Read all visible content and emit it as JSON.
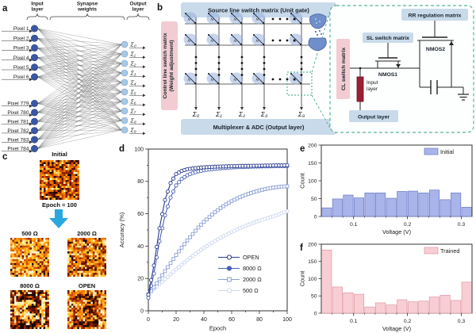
{
  "a": {
    "label": "a",
    "brace_labels": [
      "Input layer",
      "Synapse weights",
      "Output layer"
    ],
    "inputs": [
      "Pixel 1",
      "Pixel 2",
      "Pixel 3",
      "Pixel 4",
      "Pixel 5",
      "Pixel 6",
      "Pixel 779",
      "Pixel 780",
      "Pixel 781",
      "Pixel 782",
      "Pixel 783",
      "Pixel 784"
    ],
    "outputs": [
      "Σ₀",
      "Σ₁",
      "Σ₂",
      "Σ₃",
      "Σ₄",
      "Σ₅",
      "Σ₆",
      "Σ₇",
      "Σ₈",
      "Σ₉"
    ],
    "input_node_color": "#3a57a7",
    "output_node_color": "#a8c8e8"
  },
  "b": {
    "label": "b",
    "source_box": "Source line switch matrix (Unit gate)",
    "control_line1": "Control line switch matrix",
    "control_line2": "(Weight adjustment)",
    "mux_box": "Multiplexer & ADC (Output layer)",
    "sums": [
      "Σ₀",
      "Σ₁",
      "Σ₂",
      "Σ₃",
      "Σ₉"
    ],
    "detail": {
      "rr": "RR regulation matrix",
      "sl": "SL switch matrix",
      "cl": "CL switch matrix",
      "nmos1": "NMOS1",
      "nmos2": "NMOS2",
      "input_line1": "Input",
      "input_line2": "layer",
      "output_layer": "Output layer"
    },
    "box_blue": "#c9daea",
    "box_pink": "#f2ccd2",
    "resistor_color": "#9b1f35",
    "callout_color": "#57b39e"
  },
  "c": {
    "label": "c",
    "maps": [
      {
        "id": "initial",
        "title": "Initial",
        "subtitle": "Epoch = 100",
        "seed": 101,
        "style": "initial"
      },
      {
        "id": "m500",
        "title": "500 Ω",
        "seed": 202,
        "style": "bright"
      },
      {
        "id": "m2000",
        "title": "2000 Ω",
        "seed": 303,
        "style": "noisy"
      },
      {
        "id": "m8000",
        "title": "8000 Ω",
        "seed": 404,
        "style": "digit_strong"
      },
      {
        "id": "open",
        "title": "OPEN",
        "seed": 505,
        "style": "digit_soft"
      }
    ],
    "arrow_color": "#2aa7df",
    "palette": [
      "#120300",
      "#591000",
      "#932300",
      "#cf4b00",
      "#ef7300",
      "#ff9d00",
      "#ffc435",
      "#ffe482",
      "#fff6d0"
    ],
    "styles": {
      "initial": {
        "base": [
          0.1,
          0.12,
          0.14,
          0.16,
          0.15,
          0.12,
          0.1,
          0.06,
          0.05
        ]
      },
      "bright": {
        "base": [
          0.03,
          0.05,
          0.08,
          0.12,
          0.16,
          0.18,
          0.17,
          0.13,
          0.08
        ]
      },
      "noisy": {
        "base": [
          0.06,
          0.09,
          0.12,
          0.15,
          0.16,
          0.15,
          0.13,
          0.09,
          0.05
        ]
      },
      "digit_strong": {
        "base": [
          0.02,
          0.03,
          0.04,
          0.05,
          0.08,
          0.12,
          0.18,
          0.25,
          0.23
        ],
        "digit": [
          0.45,
          0.3,
          0.15,
          0.07,
          0.03,
          0,
          0,
          0,
          0
        ],
        "border": [
          0.28,
          0.3,
          0.22,
          0.12,
          0.08,
          0,
          0,
          0,
          0
        ]
      },
      "digit_soft": {
        "base": [
          0.04,
          0.07,
          0.1,
          0.14,
          0.16,
          0.16,
          0.14,
          0.11,
          0.08
        ],
        "digit": [
          0.3,
          0.3,
          0.22,
          0.1,
          0.05,
          0.03,
          0,
          0,
          0
        ]
      }
    },
    "digit_bitmap": [
      "..............",
      "...XXXXXX.....",
      "..XXXXXXXX....",
      "..XX....XXX...",
      ".........XX...",
      "......XXXX....",
      ".....XXXX.....",
      ".......XXX....",
      ".........XX...",
      "..X.......X...",
      "..XX.....XX...",
      "..XXX..XXXX...",
      "...XXXXXXX....",
      ".............."
    ]
  },
  "chart_data": [
    {
      "panel_label": "d",
      "type": "line",
      "title": "",
      "xlabel": "Epoch",
      "ylabel": "Accuracy (%)",
      "xlim": [
        0,
        100
      ],
      "ylim": [
        0,
        100
      ],
      "xticks": [
        0,
        20,
        40,
        60,
        80,
        100
      ],
      "yticks": [
        0,
        20,
        40,
        60,
        80,
        100
      ],
      "legend_position": "lower right",
      "grid": false,
      "x": [
        0,
        4,
        8,
        12,
        16,
        20,
        24,
        28,
        32,
        36,
        40,
        44,
        48,
        52,
        56,
        60,
        64,
        68,
        72,
        76,
        80,
        84,
        88,
        92,
        96,
        100
      ],
      "series": [
        {
          "name": "OPEN",
          "color": "#2c3a8c",
          "marker": "circle",
          "values": [
            10,
            28,
            51,
            68.5,
            79,
            84.5,
            86.5,
            87.5,
            88,
            88.4,
            88.7,
            88.9,
            89.1,
            89.2,
            89.3,
            89.4,
            89.5,
            89.6,
            89.6,
            89.7,
            89.7,
            89.8,
            89.8,
            89.9,
            89.9,
            90
          ]
        },
        {
          "name": "8000 Ω",
          "color": "#4961b5",
          "marker": "circle",
          "values": [
            8,
            23,
            43,
            59,
            70,
            77.5,
            81.5,
            83.8,
            85.2,
            86.2,
            86.9,
            87.4,
            87.8,
            88.1,
            88.4,
            88.6,
            88.8,
            88.9,
            89,
            89.1,
            89.2,
            89.3,
            89.3,
            89.4,
            89.4,
            89.5
          ]
        },
        {
          "name": "2000 Ω",
          "color": "#8ea0d8",
          "marker": "square",
          "values": [
            10,
            14.5,
            19.5,
            24.5,
            29.5,
            34.5,
            39,
            43.5,
            47.5,
            51.5,
            55,
            58,
            61,
            63.5,
            65.8,
            67.8,
            69.5,
            71,
            72.3,
            73.4,
            74.4,
            75.2,
            75.9,
            76.4,
            76.8,
            77
          ]
        },
        {
          "name": "500 Ω",
          "color": "#ccd7f0",
          "marker": "circle",
          "values": [
            11,
            13.5,
            16.5,
            19.5,
            22.5,
            25.5,
            28.5,
            31.3,
            34,
            36.5,
            38.9,
            41.1,
            43.2,
            45.2,
            47,
            48.7,
            50.3,
            51.8,
            53.2,
            54.5,
            55.7,
            56.8,
            57.9,
            58.9,
            60.3,
            61.5
          ]
        }
      ]
    },
    {
      "panel_label": "e",
      "type": "bar",
      "legend": "Initial",
      "color": "#a9b4ea",
      "border": "#6b79c4",
      "xlabel": "Voltage (V)",
      "ylabel": "Count",
      "ylim": [
        0,
        200
      ],
      "yticks": [
        0,
        50,
        100,
        150,
        200
      ],
      "xticks": [
        0.1,
        0.2,
        0.3
      ],
      "bin_start": 0.04,
      "bin_width": 0.02,
      "values": [
        24,
        49,
        60,
        52,
        66,
        66,
        51,
        70,
        71,
        66,
        74,
        47,
        66,
        26
      ]
    },
    {
      "panel_label": "f",
      "type": "bar",
      "legend": "Trained",
      "color": "#f8ced4",
      "border": "#dd97a1",
      "xlabel": "Voltage (V)",
      "ylabel": "Count",
      "ylim": [
        0,
        200
      ],
      "yticks": [
        0,
        50,
        100,
        150,
        200
      ],
      "xticks": [
        0.1,
        0.2,
        0.3
      ],
      "bin_start": 0.04,
      "bin_width": 0.02,
      "values": [
        183,
        76,
        59,
        55,
        18,
        30,
        24,
        39,
        33,
        35,
        47,
        52,
        37,
        90
      ]
    }
  ]
}
